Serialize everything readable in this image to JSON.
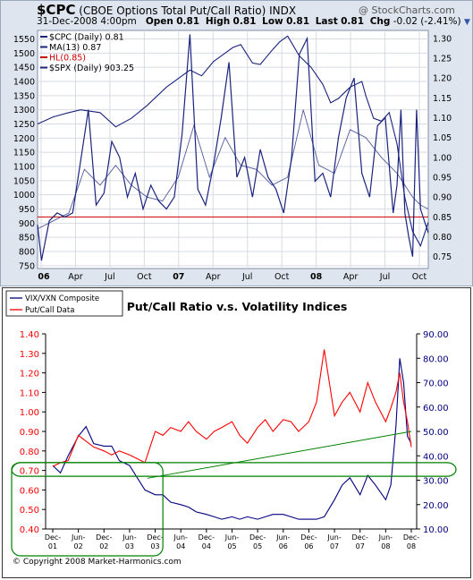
{
  "top_chart": {
    "symbol": "$CPC",
    "title_desc": "(CBOE Options Total Put/Call Ratio)",
    "exchange": "INDX",
    "logo": "@ StockCharts.com",
    "date": "31-Dec-2008 4:00pm",
    "open_label": "Open",
    "open": "0.81",
    "high_label": "High",
    "high": "0.81",
    "low_label": "Low",
    "low": "0.81",
    "last_label": "Last",
    "last": "0.81",
    "chg_label": "Chg",
    "chg": "-0.02 (-2.41%)",
    "legend": [
      "$CPC (Daily) 0.81",
      "MA(13) 0.87",
      "HL(0.85)",
      "$SPX (Daily) 903.25"
    ],
    "colors": {
      "cpc": "#1a237e",
      "ma": "#1a237e",
      "hl": "#cc0000",
      "spx": "#1a237e",
      "bg": "#ffffff",
      "frame": "#dfe5ee"
    }
  },
  "bottom_chart": {
    "title": "Put/Call Ratio v.s. Volatility Indices",
    "legend": [
      "VIX/VXN Composite",
      "Put/Call Data"
    ],
    "copyright": "© Copyright 2008 Market-Harmonics.com",
    "colors": {
      "vix": "#000080",
      "pc": "#ff0000",
      "trend": "#008000",
      "left_axis": "#ff0000",
      "right_axis": "#000080"
    }
  },
  "chart_data": [
    {
      "type": "line",
      "ylabel_left": "",
      "ylim_left": [
        740,
        1580
      ],
      "left_ticks": [
        1550,
        1500,
        1450,
        1400,
        1350,
        1300,
        1250,
        1200,
        1150,
        1100,
        1050,
        1000,
        950,
        900,
        850,
        800,
        750
      ],
      "ylim_right": [
        0.72,
        1.32
      ],
      "right_ticks": [
        "1.30",
        "1.25",
        "1.20",
        "1.15",
        "1.10",
        "1.05",
        "1.00",
        "0.95",
        "0.90",
        "0.85",
        "0.80",
        "0.75"
      ],
      "x_ticks": [
        "06",
        "Apr",
        "Jul",
        "Oct",
        "07",
        "Apr",
        "Jul",
        "Oct",
        "08",
        "Apr",
        "Jul",
        "Oct"
      ],
      "x_ticks_bold": [
        true,
        false,
        false,
        false,
        true,
        false,
        false,
        false,
        true,
        false,
        false,
        false
      ],
      "grid": true,
      "hl_level": 0.85,
      "series": [
        {
          "name": "$SPX (Daily)",
          "axis": "left",
          "x": [
            0,
            0.04,
            0.08,
            0.11,
            0.16,
            0.2,
            0.24,
            0.28,
            0.33,
            0.36,
            0.39,
            0.42,
            0.45,
            0.48,
            0.5,
            0.52,
            0.55,
            0.57,
            0.6,
            0.62,
            0.64,
            0.67,
            0.7,
            0.73,
            0.75,
            0.77,
            0.8,
            0.83,
            0.84,
            0.86,
            0.88,
            0.9,
            0.92,
            0.94,
            0.96,
            0.98,
            1.0
          ],
          "y": [
            1250,
            1275,
            1290,
            1300,
            1290,
            1240,
            1270,
            1315,
            1380,
            1410,
            1440,
            1420,
            1470,
            1500,
            1520,
            1530,
            1465,
            1460,
            1510,
            1540,
            1560,
            1490,
            1450,
            1390,
            1325,
            1340,
            1380,
            1400,
            1350,
            1270,
            1260,
            1290,
            1180,
            990,
            870,
            820,
            903
          ]
        },
        {
          "name": "$CPC (Daily)",
          "axis": "right",
          "x": [
            0,
            0.01,
            0.03,
            0.05,
            0.07,
            0.09,
            0.11,
            0.13,
            0.15,
            0.17,
            0.19,
            0.21,
            0.23,
            0.25,
            0.27,
            0.29,
            0.31,
            0.33,
            0.35,
            0.37,
            0.39,
            0.41,
            0.43,
            0.45,
            0.47,
            0.49,
            0.51,
            0.53,
            0.55,
            0.57,
            0.59,
            0.61,
            0.63,
            0.65,
            0.67,
            0.69,
            0.71,
            0.73,
            0.75,
            0.77,
            0.79,
            0.81,
            0.83,
            0.85,
            0.87,
            0.89,
            0.91,
            0.92,
            0.93,
            0.94,
            0.95,
            0.96,
            0.97,
            0.98,
            0.99,
            1.0
          ],
          "y": [
            0.83,
            0.74,
            0.84,
            0.86,
            0.85,
            0.86,
            0.99,
            1.12,
            0.88,
            0.91,
            1.04,
            1.0,
            0.9,
            0.96,
            0.87,
            0.93,
            0.89,
            0.87,
            0.9,
            1.06,
            1.31,
            0.92,
            0.88,
            0.98,
            1.1,
            1.24,
            0.95,
            1.0,
            0.9,
            1.02,
            0.95,
            0.92,
            0.86,
            1.0,
            1.26,
            1.3,
            0.94,
            0.96,
            0.9,
            1.05,
            1.15,
            1.2,
            0.96,
            0.9,
            1.08,
            1.1,
            0.86,
            0.93,
            1.12,
            0.86,
            0.8,
            0.75,
            1.12,
            0.87,
            0.84,
            0.81
          ]
        },
        {
          "name": "MA(13)",
          "axis": "right",
          "x": [
            0,
            0.04,
            0.08,
            0.12,
            0.16,
            0.2,
            0.24,
            0.28,
            0.32,
            0.36,
            0.4,
            0.44,
            0.48,
            0.52,
            0.56,
            0.6,
            0.64,
            0.68,
            0.72,
            0.76,
            0.8,
            0.84,
            0.88,
            0.92,
            0.94,
            0.96,
            0.98,
            1.0
          ],
          "y": [
            0.82,
            0.84,
            0.86,
            0.97,
            0.93,
            0.98,
            0.93,
            0.9,
            0.89,
            0.95,
            1.08,
            0.95,
            1.05,
            0.98,
            0.97,
            0.93,
            0.95,
            1.12,
            0.98,
            0.96,
            1.07,
            1.05,
            1.0,
            0.96,
            0.93,
            0.9,
            0.88,
            0.87
          ]
        }
      ]
    },
    {
      "type": "line",
      "title": "Put/Call Ratio v.s. Volatility Indices",
      "ylim_left": [
        0.4,
        1.4
      ],
      "left_ticks": [
        "1.40",
        "1.30",
        "1.20",
        "1.10",
        "1.00",
        "0.90",
        "0.80",
        "0.70",
        "0.60",
        "0.50",
        "0.40"
      ],
      "ylim_right": [
        10,
        90
      ],
      "right_ticks": [
        "90.00",
        "80.00",
        "70.00",
        "60.00",
        "50.00",
        "40.00",
        "30.00",
        "20.00",
        "10.00"
      ],
      "x_ticks": [
        [
          "Dec-",
          "01"
        ],
        [
          "Jun-",
          "02"
        ],
        [
          "Dec-",
          "02"
        ],
        [
          "Jun-",
          "03"
        ],
        [
          "Dec-",
          "03"
        ],
        [
          "Jun-",
          "04"
        ],
        [
          "Dec-",
          "04"
        ],
        [
          "Jun-",
          "05"
        ],
        [
          "Dec-",
          "05"
        ],
        [
          "Jun-",
          "06"
        ],
        [
          "Dec-",
          "06"
        ],
        [
          "Jun-",
          "07"
        ],
        [
          "Dec-",
          "07"
        ],
        [
          "Jun-",
          "08"
        ],
        [
          "Dec-",
          "08"
        ]
      ],
      "grid": false,
      "series": [
        {
          "name": "VIX/VXN Composite",
          "axis": "right",
          "x": [
            0,
            0.3,
            0.6,
            1.0,
            1.3,
            1.6,
            2.0,
            2.3,
            2.6,
            3.0,
            3.3,
            3.6,
            4.0,
            4.3,
            4.6,
            5.0,
            5.3,
            5.6,
            6.0,
            6.3,
            6.6,
            7.0,
            7.3,
            7.6,
            8.0,
            8.3,
            8.6,
            9.0,
            9.3,
            9.6,
            10.0,
            10.3,
            10.6,
            11.0,
            11.3,
            11.6,
            12.0,
            12.3,
            12.6,
            13.0,
            13.2,
            13.4,
            13.55,
            13.7,
            13.85,
            14.0
          ],
          "y": [
            36,
            33,
            40,
            48,
            52,
            45,
            44,
            44,
            38,
            36,
            31,
            26,
            24,
            24,
            21,
            20,
            19,
            17,
            16,
            15,
            14,
            15,
            14,
            15,
            14,
            15,
            16,
            16,
            15,
            14,
            14,
            14,
            15,
            22,
            28,
            31,
            24,
            32,
            28,
            22,
            28,
            52,
            80,
            70,
            48,
            45
          ]
        },
        {
          "name": "Put/Call Data",
          "axis": "left",
          "x": [
            0,
            0.3,
            0.6,
            1.0,
            1.3,
            1.6,
            2.0,
            2.3,
            2.6,
            3.0,
            3.3,
            3.6,
            4.0,
            4.3,
            4.6,
            5.0,
            5.3,
            5.6,
            6.0,
            6.3,
            6.6,
            7.0,
            7.3,
            7.6,
            8.0,
            8.3,
            8.6,
            9.0,
            9.3,
            9.6,
            10.0,
            10.3,
            10.6,
            11.0,
            11.3,
            11.6,
            12.0,
            12.3,
            12.6,
            13.0,
            13.2,
            13.4,
            13.55,
            13.7,
            13.85,
            14.0
          ],
          "y": [
            0.72,
            0.74,
            0.75,
            0.88,
            0.85,
            0.82,
            0.8,
            0.78,
            0.8,
            0.78,
            0.76,
            0.74,
            0.9,
            0.88,
            0.92,
            0.9,
            0.95,
            0.9,
            0.86,
            0.9,
            0.92,
            0.95,
            0.88,
            0.84,
            0.92,
            0.96,
            0.9,
            0.96,
            0.95,
            0.9,
            0.95,
            1.05,
            1.32,
            0.98,
            1.05,
            1.1,
            1.0,
            1.15,
            1.05,
            0.95,
            1.02,
            1.1,
            1.2,
            1.05,
            0.95,
            0.82
          ]
        }
      ],
      "trendline": {
        "x": [
          3.7,
          14.0
        ],
        "y": [
          0.66,
          0.9
        ]
      }
    }
  ]
}
